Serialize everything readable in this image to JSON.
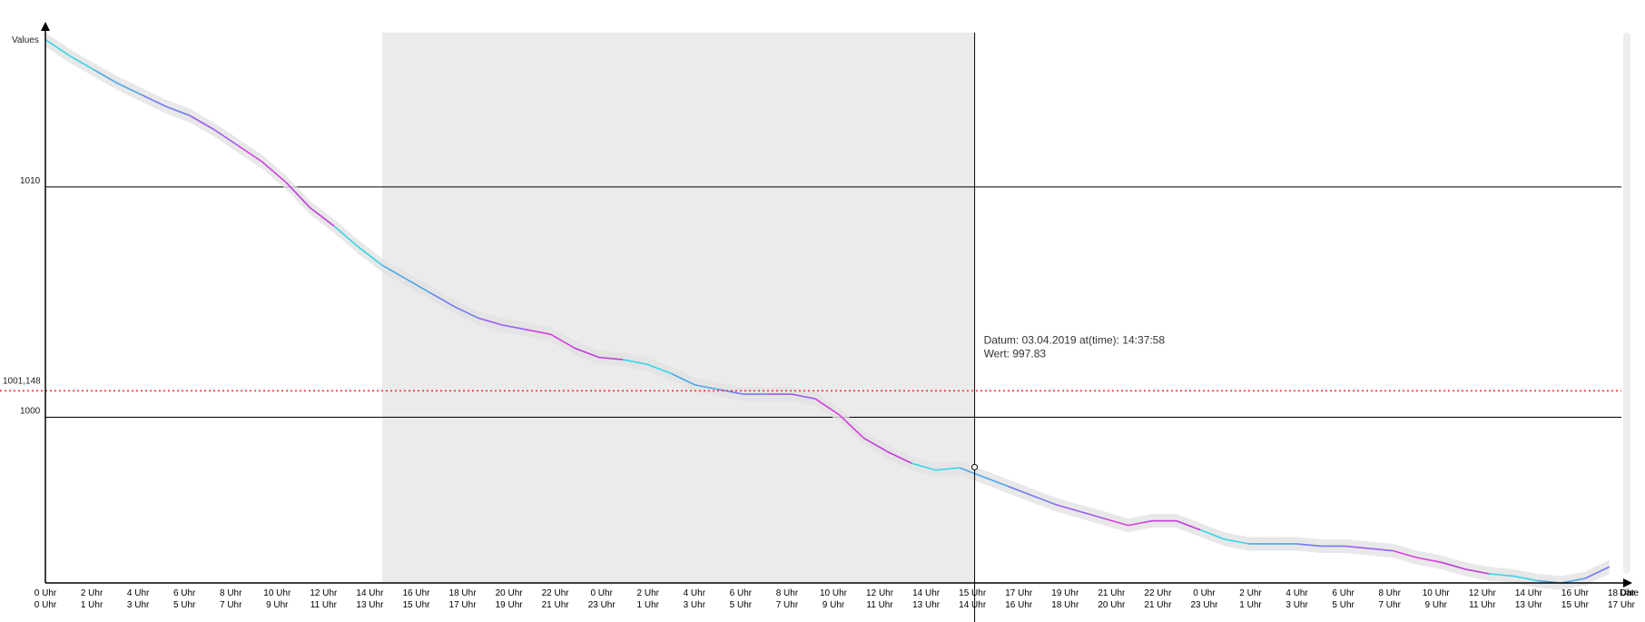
{
  "chart_data": {
    "type": "line",
    "ylabel": "Values",
    "xlabel": "Date",
    "ylim": [
      992.8,
      1016.7
    ],
    "x_ticks_top": [
      "0 Uhr",
      "2 Uhr",
      "4 Uhr",
      "6 Uhr",
      "8 Uhr",
      "10 Uhr",
      "12 Uhr",
      "14 Uhr",
      "16 Uhr",
      "18 Uhr",
      "20 Uhr",
      "22 Uhr",
      "0 Uhr",
      "2 Uhr",
      "4 Uhr",
      "6 Uhr",
      "8 Uhr",
      "10 Uhr",
      "12 Uhr",
      "14 Uhr",
      "15 Uhr",
      "17 Uhr",
      "19 Uhr",
      "21 Uhr",
      "22 Uhr",
      "0 Uhr",
      "2 Uhr",
      "4 Uhr",
      "6 Uhr",
      "8 Uhr",
      "10 Uhr",
      "12 Uhr",
      "14 Uhr",
      "16 Uhr",
      "18 Uhr"
    ],
    "x_ticks_bottom": [
      "0 Uhr",
      "1 Uhr",
      "3 Uhr",
      "5 Uhr",
      "7 Uhr",
      "9 Uhr",
      "11 Uhr",
      "13 Uhr",
      "15 Uhr",
      "17 Uhr",
      "19 Uhr",
      "21 Uhr",
      "23 Uhr",
      "1 Uhr",
      "3 Uhr",
      "5 Uhr",
      "7 Uhr",
      "9 Uhr",
      "11 Uhr",
      "13 Uhr",
      "14 Uhr",
      "16 Uhr",
      "18 Uhr",
      "20 Uhr",
      "21 Uhr",
      "23 Uhr",
      "1 Uhr",
      "3 Uhr",
      "5 Uhr",
      "7 Uhr",
      "9 Uhr",
      "11 Uhr",
      "13 Uhr",
      "15 Uhr",
      "17 Uhr"
    ],
    "y_ticks": [
      "1010",
      "1000"
    ],
    "threshold": {
      "label": "1001,148",
      "value": 1001.148,
      "color": "#ff2222"
    },
    "series": [
      {
        "x_hours": [
          0,
          1,
          2,
          3,
          4,
          5,
          6,
          7,
          8,
          9,
          10,
          11,
          12,
          13,
          14,
          15,
          16,
          17,
          18,
          19,
          20,
          21,
          22,
          23,
          24,
          25,
          26,
          27,
          28,
          29,
          30,
          31,
          32,
          33,
          34,
          35,
          36,
          37,
          38,
          39,
          40,
          41,
          42,
          43,
          44,
          45,
          46,
          47,
          48,
          49,
          50,
          51,
          52,
          53,
          54,
          55,
          56,
          57,
          58,
          59,
          60,
          61,
          62,
          63,
          64,
          65,
          66
        ],
        "values": [
          1016.4,
          1015.7,
          1015.1,
          1014.5,
          1014.0,
          1013.5,
          1013.1,
          1012.5,
          1011.8,
          1011.1,
          1010.2,
          1009.1,
          1008.3,
          1007.4,
          1006.6,
          1006.0,
          1005.4,
          1004.8,
          1004.3,
          1004.0,
          1003.8,
          1003.6,
          1003.0,
          1002.6,
          1002.5,
          1002.3,
          1001.9,
          1001.4,
          1001.2,
          1001.0,
          1001.0,
          1001.0,
          1000.8,
          1000.1,
          999.1,
          998.5,
          998.0,
          997.7,
          997.8,
          997.4,
          997.0,
          996.6,
          996.2,
          995.9,
          995.6,
          995.3,
          995.5,
          995.5,
          995.1,
          994.7,
          994.5,
          994.5,
          994.5,
          994.4,
          994.4,
          994.3,
          994.2,
          993.9,
          993.7,
          993.4,
          993.2,
          993.1,
          992.9,
          992.8,
          993.0,
          993.5,
          null
        ],
        "band": 0.3
      }
    ],
    "selection_range_hours": [
      14,
      38.6
    ],
    "crosshair": {
      "x_hour": 38.62,
      "value": 997.83
    }
  },
  "tooltip": {
    "date_line": "Datum: 03.04.2019 at(time): 14:37:58",
    "value_line": "Wert: 997.83"
  }
}
